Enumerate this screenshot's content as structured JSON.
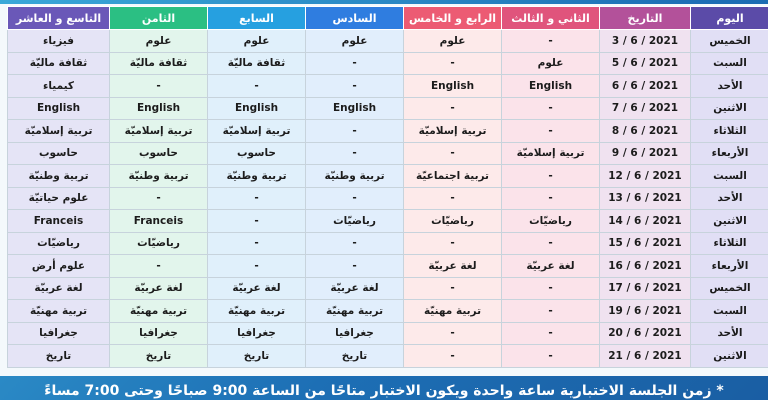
{
  "headers": [
    "اليوم",
    "التاريخ",
    "الثاني و الثالث",
    "الرابع و الخامس",
    "السادس",
    "السابع",
    "الثامن",
    "التاسع و العاشر"
  ],
  "rows": [
    [
      "الخميس",
      "2021 / 6 / 3",
      "-",
      "علوم",
      "علوم",
      "علوم",
      "علوم",
      "فيزياء"
    ],
    [
      "السبت",
      "2021 / 6 / 5",
      "علوم",
      "-",
      "-",
      "ثقافة ماليّة",
      "ثقافة ماليّة",
      "ثقافة ماليّة"
    ],
    [
      "الأحد",
      "2021 / 6 / 6",
      "English",
      "English",
      "-",
      "-",
      "-",
      "كيمياء"
    ],
    [
      "الاثنين",
      "2021 / 6 / 7",
      "-",
      "-",
      "English",
      "English",
      "English",
      "English"
    ],
    [
      "الثلاثاء",
      "2021 / 6 / 8",
      "-",
      "تربية إسلاميّة",
      "-",
      "تربية إسلاميّة",
      "تربية إسلاميّة",
      "تربية إسلاميّة"
    ],
    [
      "الأربعاء",
      "2021 / 6 / 9",
      "تربية إسلاميّة",
      "-",
      "-",
      "حاسوب",
      "حاسوب",
      "حاسوب"
    ],
    [
      "السبت",
      "2021 / 6 / 12",
      "-",
      "تربية اجتماعيّة",
      "تربية وطنيّة",
      "تربية وطنيّة",
      "تربية وطنيّة",
      "تربية وطنيّة"
    ],
    [
      "الأحد",
      "2021 / 6 / 13",
      "-",
      "-",
      "-",
      "-",
      "-",
      "علوم حياتيّة"
    ],
    [
      "الاثنين",
      "2021 / 6 / 14",
      "رياضيّات",
      "رياضيّات",
      "رياضيّات",
      "-",
      "Franceis",
      "Franceis"
    ],
    [
      "الثلاثاء",
      "2021 / 6 / 15",
      "-",
      "-",
      "-",
      "-",
      "رياضيّات",
      "رياضيّات"
    ],
    [
      "الأربعاء",
      "2021 / 6 / 16",
      "لغة عربيّة",
      "لغة عربيّة",
      "-",
      "-",
      "-",
      "علوم أرض"
    ],
    [
      "الخميس",
      "2021 / 6 / 17",
      "-",
      "-",
      "لغة عربيّة",
      "لغة عربيّة",
      "لغة عربيّة",
      "لغة عربيّة"
    ],
    [
      "السبت",
      "2021 / 6 / 19",
      "-",
      "تربية مهنيّة",
      "تربية مهنيّة",
      "تربية مهنيّة",
      "تربية مهنيّة",
      "تربية مهنيّة"
    ],
    [
      "الأحد",
      "2021 / 6 / 20",
      "-",
      "-",
      "جغرافيا",
      "جغرافيا",
      "جغرافيا",
      "جغرافيا"
    ],
    [
      "الاثنين",
      "2021 / 6 / 21",
      "-",
      "-",
      "تاريخ",
      "تاريخ",
      "تاريخ",
      "تاريخ"
    ]
  ],
  "note": "* زمن الجلسة الاختبارية ساعة واحدة ويكون الاختبار متاحًا من الساعة 9:00 صباحًا وحتى 7:00 مساءً"
}
